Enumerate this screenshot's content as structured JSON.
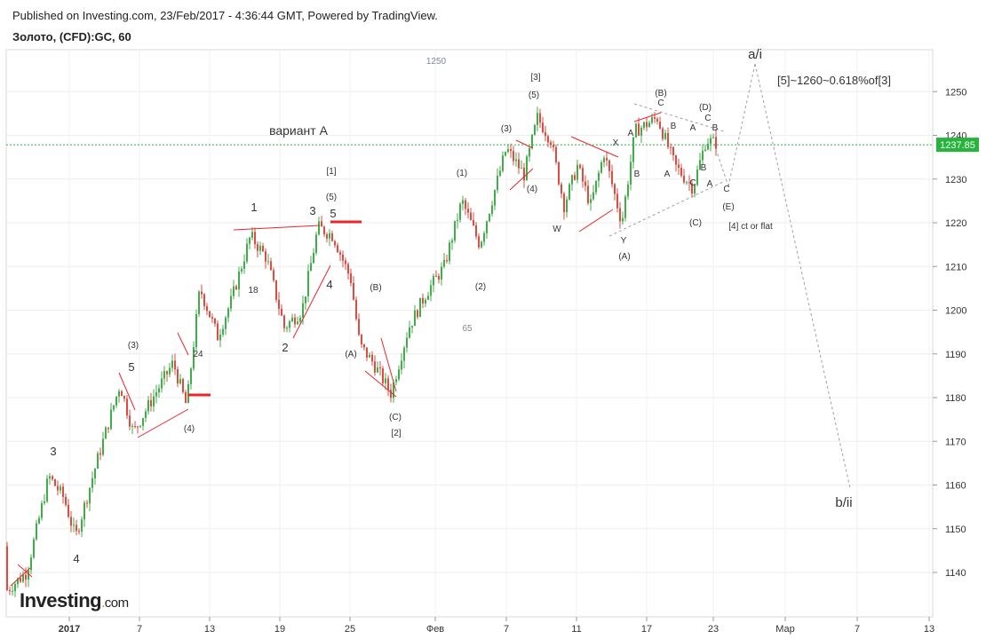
{
  "header": {
    "published": "Published on Investing.com, 23/Feb/2017 - 4:36:44 GMT, Powered by TradingView.",
    "symbol": "Золото, (CFD):GC, 60"
  },
  "logo": {
    "main": "Investing",
    "suffix": "com"
  },
  "colors": {
    "up": "#3fae49",
    "down": "#e04a3f",
    "wave_line": "#e8262d",
    "current_line": "#27b43c",
    "projection": "#9e9e9e",
    "axis_text": "#333333"
  },
  "chart_data": {
    "type": "candlestick",
    "title": "Золото, (CFD):GC, 60",
    "ylim": [
      1131,
      1262
    ],
    "y_ticks": [
      1140,
      1150,
      1160,
      1170,
      1180,
      1190,
      1200,
      1210,
      1220,
      1230,
      1240,
      1250
    ],
    "x_tick_labels": [
      "2017",
      "7",
      "13",
      "19",
      "25",
      "Фев",
      "7",
      "11",
      "17",
      "23",
      "Мар",
      "7",
      "13"
    ],
    "current_price": "1237.85",
    "price_path": [
      [
        0,
        1146
      ],
      [
        8,
        1136
      ],
      [
        30,
        1140
      ],
      [
        55,
        1162
      ],
      [
        72,
        1157
      ],
      [
        85,
        1148
      ],
      [
        110,
        1166
      ],
      [
        135,
        1183
      ],
      [
        150,
        1172
      ],
      [
        175,
        1181
      ],
      [
        195,
        1188
      ],
      [
        210,
        1178
      ],
      [
        225,
        1205
      ],
      [
        245,
        1194
      ],
      [
        260,
        1202
      ],
      [
        282,
        1217
      ],
      [
        300,
        1212
      ],
      [
        320,
        1196
      ],
      [
        340,
        1200
      ],
      [
        358,
        1219
      ],
      [
        375,
        1217
      ],
      [
        395,
        1207
      ],
      [
        405,
        1192
      ],
      [
        420,
        1188
      ],
      [
        440,
        1181
      ],
      [
        460,
        1196
      ],
      [
        480,
        1204
      ],
      [
        500,
        1210
      ],
      [
        520,
        1225
      ],
      [
        540,
        1215
      ],
      [
        555,
        1226
      ],
      [
        570,
        1237
      ],
      [
        590,
        1231
      ],
      [
        605,
        1244
      ],
      [
        620,
        1239
      ],
      [
        635,
        1224
      ],
      [
        650,
        1233
      ],
      [
        665,
        1224
      ],
      [
        680,
        1236
      ],
      [
        700,
        1220
      ],
      [
        715,
        1241
      ],
      [
        740,
        1244
      ],
      [
        760,
        1233
      ],
      [
        780,
        1228
      ],
      [
        795,
        1239
      ],
      [
        808,
        1238
      ]
    ],
    "annotations": {
      "variant": "вариант А",
      "target": "[5]~1260~0.618%of[3]",
      "flat_note": "[4] ct or flat",
      "ai": "a/i",
      "bii": "b/ii",
      "n1250": "1250",
      "n65": "65",
      "n18": "18",
      "n24": "24",
      "w_3p_a": "(3)",
      "w_5_a": "5",
      "w_3_a": "3",
      "w_4_a": "4",
      "w_4p_a": "(4)",
      "w_1": "1",
      "w_2": "2",
      "w_3_b": "3",
      "w_4_b": "4",
      "w_5_b": "5",
      "w_1b": "[1]",
      "w_5p_b": "(5)",
      "w_Ap": "(A)",
      "w_Bp": "(B)",
      "w_Cp": "(C)",
      "w_2b": "[2]",
      "w_1p": "(1)",
      "w_2p": "(2)",
      "w_3p": "(3)",
      "w_4p": "(4)",
      "w_5p": "(5)",
      "w_3b": "[3]",
      "w_W": "W",
      "w_X": "X",
      "w_Y": "Y",
      "w_Ap2": "(A)",
      "w_A1": "A",
      "w_B1": "B",
      "w_Bp2": "(B)",
      "w_C1": "C",
      "w_B2": "B",
      "w_A2": "A",
      "w_C2": "C",
      "w_Cp2": "(C)",
      "w_Dp": "(D)",
      "w_C3": "C",
      "w_B3": "B",
      "w_A3": "A",
      "w_B4": "B",
      "w_A4": "A",
      "w_C4": "C",
      "w_Ep": "(E)"
    }
  }
}
